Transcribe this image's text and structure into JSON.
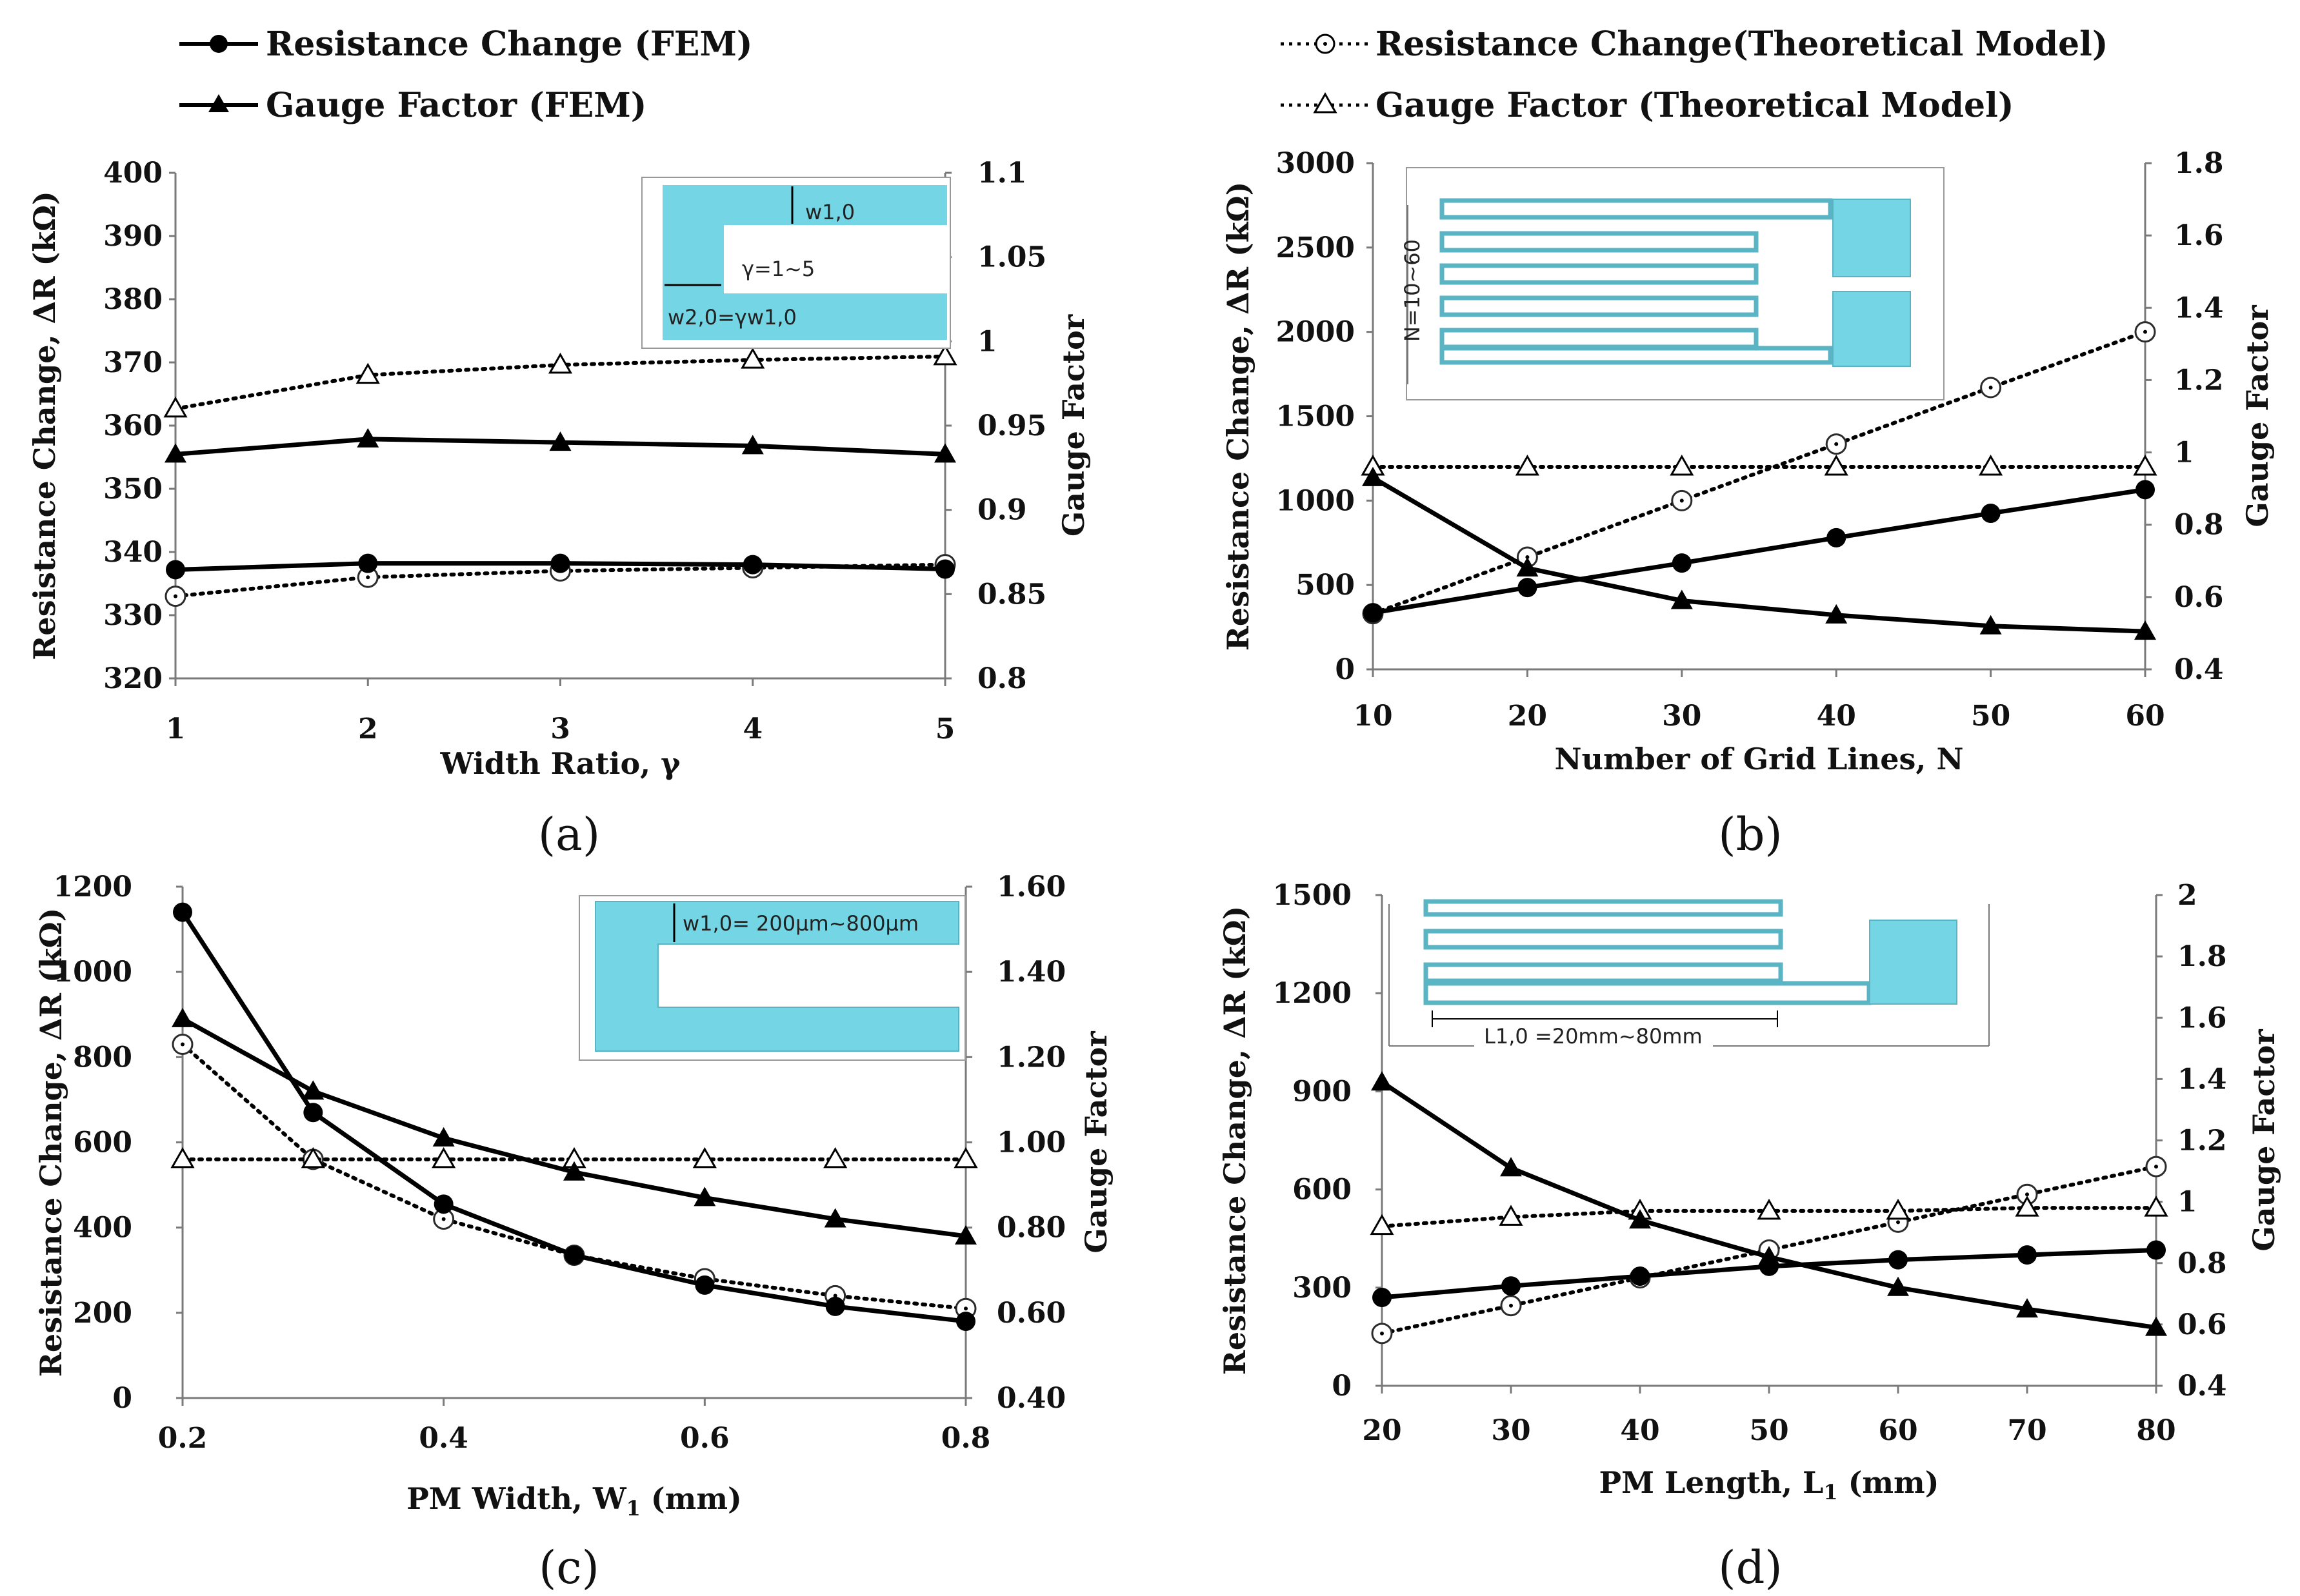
{
  "legend": {
    "fem_resistance": "Resistance Change (FEM)",
    "fem_gauge": "Gauge Factor (FEM)",
    "theory_resistance": "Resistance Change(Theoretical Model)",
    "theory_gauge": "Gauge Factor (Theoretical Model)"
  },
  "colors": {
    "line": "#000000",
    "inset_fill": "#74d6e4",
    "inset_stroke": "#5ab4c4",
    "open_circle": "#4a5a8a"
  },
  "chart_data": [
    {
      "type": "line",
      "panel_label": "(a)",
      "xlabel": "Width Ratio, γ",
      "ylabel": "Resistance Change, ΔR (kΩ)",
      "y2label": "Gauge Factor",
      "x": [
        1,
        2,
        3,
        4,
        5
      ],
      "xlim": [
        1,
        5
      ],
      "xticks": [
        1,
        2,
        3,
        4,
        5
      ],
      "xtick_labels": [
        "1",
        "2",
        "3",
        "4",
        "5"
      ],
      "ylim": [
        320,
        400
      ],
      "yticks": [
        320,
        330,
        340,
        350,
        360,
        370,
        380,
        390,
        400
      ],
      "ytick_labels": [
        "320",
        "330",
        "340",
        "350",
        "360",
        "370",
        "380",
        "390",
        "400"
      ],
      "y2lim": [
        0.8,
        1.1
      ],
      "y2ticks": [
        0.8,
        0.85,
        0.9,
        0.95,
        1.0,
        1.05,
        1.1
      ],
      "y2tick_labels": [
        "0.8",
        "0.85",
        "0.9",
        "0.95",
        "1",
        "1.05",
        "1.1"
      ],
      "series": [
        {
          "name": "Resistance Change (FEM)",
          "axis": "left",
          "style": "solid",
          "marker": "filled-circle",
          "values": [
            337.2,
            338.2,
            338.2,
            338.0,
            337.3
          ]
        },
        {
          "name": "Gauge Factor (FEM)",
          "axis": "right",
          "style": "solid",
          "marker": "filled-triangle",
          "values": [
            0.933,
            0.942,
            0.94,
            0.938,
            0.933
          ]
        },
        {
          "name": "Resistance Change(Theoretical Model)",
          "axis": "left",
          "style": "dotted",
          "marker": "open-circle",
          "values": [
            333.0,
            336.0,
            337.0,
            337.5,
            338.0
          ]
        },
        {
          "name": "Gauge Factor (Theoretical Model)",
          "axis": "right",
          "style": "dotted",
          "marker": "open-triangle",
          "values": [
            0.96,
            0.98,
            0.986,
            0.989,
            0.991
          ]
        }
      ],
      "inset": {
        "labels": [
          "w1,0",
          "γ=1~5",
          "w2,0=γw1,0"
        ]
      }
    },
    {
      "type": "line",
      "panel_label": "(b)",
      "xlabel": "Number of Grid Lines, N",
      "ylabel": "Resistance Change, ΔR (kΩ)",
      "y2label": "Gauge Factor",
      "x": [
        10,
        20,
        30,
        40,
        50,
        60
      ],
      "xlim": [
        10,
        60
      ],
      "xticks": [
        10,
        20,
        30,
        40,
        50,
        60
      ],
      "xtick_labels": [
        "10",
        "20",
        "30",
        "40",
        "50",
        "60"
      ],
      "ylim": [
        0,
        3000
      ],
      "yticks": [
        0,
        500,
        1000,
        1500,
        2000,
        2500,
        3000
      ],
      "ytick_labels": [
        "0",
        "500",
        "1000",
        "1500",
        "2000",
        "2500",
        "3000"
      ],
      "y2lim": [
        0.4,
        1.8
      ],
      "y2ticks": [
        0.4,
        0.6,
        0.8,
        1.0,
        1.2,
        1.4,
        1.6,
        1.8
      ],
      "y2tick_labels": [
        "0.4",
        "0.6",
        "0.8",
        "1",
        "1.2",
        "1.4",
        "1.6",
        "1.8"
      ],
      "series": [
        {
          "name": "Resistance Change (FEM)",
          "axis": "left",
          "style": "solid",
          "marker": "filled-circle",
          "values": [
            335,
            485,
            630,
            780,
            925,
            1065
          ]
        },
        {
          "name": "Gauge Factor (FEM)",
          "axis": "right",
          "style": "solid",
          "marker": "filled-triangle",
          "values": [
            0.93,
            0.68,
            0.59,
            0.55,
            0.52,
            0.505
          ]
        },
        {
          "name": "Resistance Change(Theoretical Model)",
          "axis": "left",
          "style": "dotted",
          "marker": "open-circle",
          "values": [
            330,
            665,
            1000,
            1335,
            1670,
            2000
          ]
        },
        {
          "name": "Gauge Factor (Theoretical Model)",
          "axis": "right",
          "style": "dotted",
          "marker": "open-triangle",
          "values": [
            0.96,
            0.96,
            0.96,
            0.96,
            0.96,
            0.96
          ]
        }
      ],
      "inset": {
        "labels": [
          "N=10~60"
        ]
      }
    },
    {
      "type": "line",
      "panel_label": "(c)",
      "xlabel": "PM Width, W1 (mm)",
      "ylabel": "Resistance Change, ΔR (kΩ)",
      "y2label": "Gauge Factor",
      "x": [
        0.2,
        0.3,
        0.4,
        0.5,
        0.6,
        0.7,
        0.8
      ],
      "xlim": [
        0.2,
        0.8
      ],
      "xticks": [
        0.2,
        0.4,
        0.6,
        0.8
      ],
      "xtick_labels": [
        "0.2",
        "0.4",
        "0.6",
        "0.8"
      ],
      "ylim": [
        0,
        1200
      ],
      "yticks": [
        0,
        200,
        400,
        600,
        800,
        1000,
        1200
      ],
      "ytick_labels": [
        "0",
        "200",
        "400",
        "600",
        "800",
        "1000",
        "1200"
      ],
      "y2lim": [
        0.4,
        1.6
      ],
      "y2ticks": [
        0.4,
        0.6,
        0.8,
        1.0,
        1.2,
        1.4,
        1.6
      ],
      "y2tick_labels": [
        "0.40",
        "0.60",
        "0.80",
        "1.00",
        "1.20",
        "1.40",
        "1.60"
      ],
      "series": [
        {
          "name": "Resistance Change (FEM)",
          "axis": "left",
          "style": "solid",
          "marker": "filled-circle",
          "values": [
            1140,
            670,
            455,
            335,
            265,
            215,
            180
          ]
        },
        {
          "name": "Gauge Factor (FEM)",
          "axis": "right",
          "style": "solid",
          "marker": "filled-triangle",
          "values": [
            1.29,
            1.12,
            1.01,
            0.93,
            0.87,
            0.82,
            0.78
          ]
        },
        {
          "name": "Resistance Change(Theoretical Model)",
          "axis": "left",
          "style": "dotted",
          "marker": "open-circle",
          "values": [
            830,
            560,
            420,
            335,
            280,
            240,
            210
          ]
        },
        {
          "name": "Gauge Factor (Theoretical Model)",
          "axis": "right",
          "style": "dotted",
          "marker": "open-triangle",
          "values": [
            0.96,
            0.96,
            0.96,
            0.96,
            0.96,
            0.96,
            0.96
          ]
        }
      ],
      "inset": {
        "labels": [
          "w1,0= 200μm~800μm"
        ]
      }
    },
    {
      "type": "line",
      "panel_label": "(d)",
      "xlabel": "PM Length, L1 (mm)",
      "ylabel": "Resistance Change, ΔR (kΩ)",
      "y2label": "Gauge Factor",
      "x": [
        20,
        30,
        40,
        50,
        60,
        70,
        80
      ],
      "xlim": [
        20,
        80
      ],
      "xticks": [
        20,
        30,
        40,
        50,
        60,
        70,
        80
      ],
      "xtick_labels": [
        "20",
        "30",
        "40",
        "50",
        "60",
        "70",
        "80"
      ],
      "ylim": [
        0,
        1500
      ],
      "yticks": [
        0,
        300,
        600,
        900,
        1200,
        1500
      ],
      "ytick_labels": [
        "0",
        "300",
        "600",
        "900",
        "1200",
        "1500"
      ],
      "y2lim": [
        0.4,
        2.0
      ],
      "y2ticks": [
        0.4,
        0.6,
        0.8,
        1.0,
        1.2,
        1.4,
        1.6,
        1.8,
        2.0
      ],
      "y2tick_labels": [
        "0.4",
        "0.6",
        "0.8",
        "1",
        "1.2",
        "1.4",
        "1.6",
        "1.8",
        "2"
      ],
      "series": [
        {
          "name": "Resistance Change (FEM)",
          "axis": "left",
          "style": "solid",
          "marker": "filled-circle",
          "values": [
            270,
            305,
            335,
            365,
            385,
            400,
            415
          ]
        },
        {
          "name": "Gauge Factor (FEM)",
          "axis": "right",
          "style": "solid",
          "marker": "filled-triangle",
          "values": [
            1.39,
            1.11,
            0.94,
            0.82,
            0.72,
            0.65,
            0.59
          ]
        },
        {
          "name": "Resistance Change(Theoretical Model)",
          "axis": "left",
          "style": "dotted",
          "marker": "open-circle",
          "values": [
            160,
            245,
            330,
            415,
            500,
            585,
            670
          ]
        },
        {
          "name": "Gauge Factor (Theoretical Model)",
          "axis": "right",
          "style": "dotted",
          "marker": "open-triangle",
          "values": [
            0.92,
            0.95,
            0.97,
            0.97,
            0.97,
            0.98,
            0.98
          ]
        }
      ],
      "inset": {
        "labels": [
          "L1,0 =20mm~80mm"
        ]
      }
    }
  ]
}
